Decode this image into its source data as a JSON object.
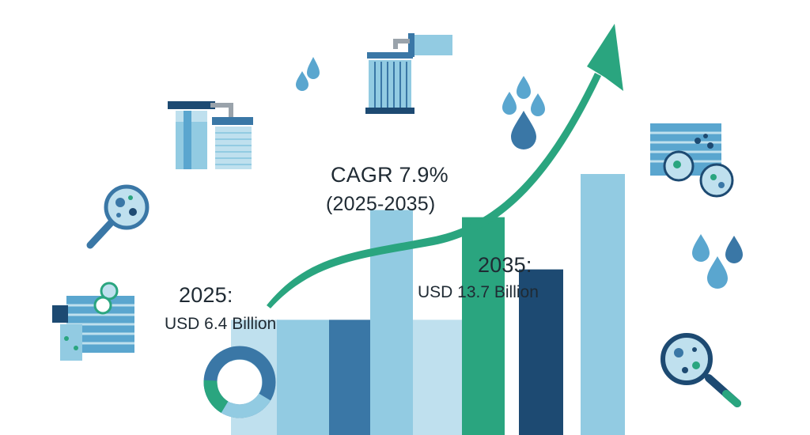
{
  "colors": {
    "teal": "#2aa57f",
    "dark_blue": "#1d4a72",
    "mid_blue": "#3a77a6",
    "light_blue": "#92cbe2",
    "pale_blue": "#bfe0ee",
    "water": "#5aa6cf"
  },
  "texts": {
    "cagr": "CAGR 7.9%",
    "period": "(2025-2035)",
    "start_year": "2025:",
    "start_value": "USD 6.4 Billion",
    "end_year": "2035:",
    "end_value": "USD 13.7 Billion"
  },
  "icons": [
    "water-filter-cartridge-icon",
    "pleated-filter-icon",
    "water-drop-icon",
    "magnifier-bacteria-icon",
    "filter-membrane-icon",
    "donut-chart-icon",
    "growth-arrow-icon"
  ],
  "chart_data": {
    "type": "bar",
    "categories": [
      "",
      "",
      "",
      "",
      "",
      "",
      "",
      ""
    ],
    "values": [
      6.4,
      6.4,
      6.4,
      12.5,
      6.4,
      12.1,
      9.2,
      14.5
    ],
    "colors": [
      "#bfe0ee",
      "#92cbe2",
      "#3a77a6",
      "#92cbe2",
      "#bfe0ee",
      "#2aa57f",
      "#1d4a72",
      "#92cbe2"
    ],
    "annotations": [
      {
        "text": "2025: USD 6.4 Billion"
      },
      {
        "text": "2035: USD 13.7 Billion"
      },
      {
        "text": "CAGR 7.9% (2025-2035)"
      }
    ]
  }
}
